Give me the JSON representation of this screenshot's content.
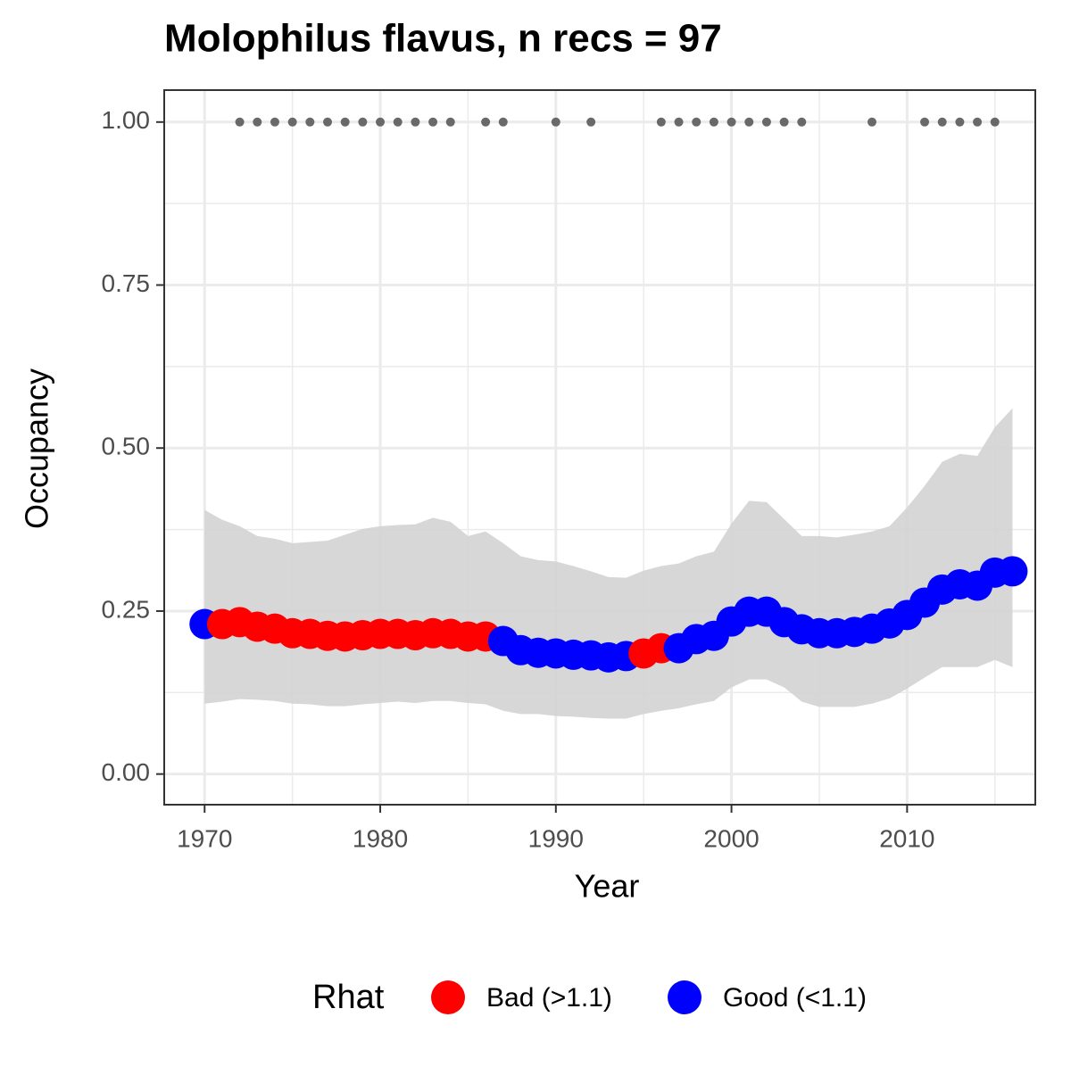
{
  "chart_data": {
    "type": "scatter",
    "title": "Molophilus flavus, n recs = 97",
    "x_label": "Year",
    "y_label": "Occupancy",
    "legend_title": "Rhat",
    "xlim": [
      1967.7,
      2017.3
    ],
    "ylim": [
      -0.047,
      1.049
    ],
    "xticks": [
      1970,
      1980,
      1990,
      2000,
      2010
    ],
    "yticks": [
      {
        "value": 0,
        "label": "0.00"
      },
      {
        "value": 0.25,
        "label": "0.25"
      },
      {
        "value": 0.5,
        "label": "0.50"
      },
      {
        "value": 0.75,
        "label": "0.75"
      },
      {
        "value": 1,
        "label": "1.00"
      }
    ],
    "x_minor_ticks": [
      1975,
      1985,
      1995,
      2005,
      2015
    ],
    "y_minor_ticks": [
      0.125,
      0.375,
      0.625,
      0.875
    ],
    "grid": true,
    "x": [
      1970,
      1971,
      1972,
      1973,
      1974,
      1975,
      1976,
      1977,
      1978,
      1979,
      1980,
      1981,
      1982,
      1983,
      1984,
      1985,
      1986,
      1987,
      1988,
      1989,
      1990,
      1991,
      1992,
      1993,
      1994,
      1995,
      1996,
      1997,
      1998,
      1999,
      2000,
      2001,
      2002,
      2003,
      2004,
      2005,
      2006,
      2007,
      2008,
      2009,
      2010,
      2011,
      2012,
      2013,
      2014,
      2015,
      2016
    ],
    "ribbon": {
      "color": "#d3d3d3",
      "upper": [
        0.405,
        0.39,
        0.38,
        0.365,
        0.361,
        0.354,
        0.356,
        0.358,
        0.367,
        0.376,
        0.38,
        0.382,
        0.383,
        0.393,
        0.387,
        0.365,
        0.372,
        0.354,
        0.334,
        0.328,
        0.326,
        0.319,
        0.311,
        0.302,
        0.301,
        0.312,
        0.319,
        0.323,
        0.334,
        0.341,
        0.384,
        0.419,
        0.417,
        0.391,
        0.365,
        0.365,
        0.363,
        0.367,
        0.372,
        0.38,
        0.409,
        0.442,
        0.479,
        0.491,
        0.488,
        0.532,
        0.561
      ],
      "lower": [
        0.108,
        0.111,
        0.115,
        0.114,
        0.112,
        0.108,
        0.107,
        0.104,
        0.104,
        0.107,
        0.109,
        0.111,
        0.109,
        0.112,
        0.112,
        0.109,
        0.107,
        0.097,
        0.092,
        0.092,
        0.089,
        0.088,
        0.086,
        0.085,
        0.085,
        0.092,
        0.097,
        0.101,
        0.107,
        0.112,
        0.133,
        0.145,
        0.145,
        0.133,
        0.111,
        0.103,
        0.103,
        0.103,
        0.108,
        0.116,
        0.131,
        0.148,
        0.164,
        0.164,
        0.164,
        0.175,
        0.164
      ]
    },
    "series": [
      {
        "name": "Bad (>1.1)",
        "color": "#ff0000",
        "values": [
          null,
          0.23,
          0.233,
          0.226,
          0.223,
          0.216,
          0.215,
          0.212,
          0.211,
          0.213,
          0.215,
          0.215,
          0.213,
          0.216,
          0.215,
          0.211,
          0.211,
          null,
          null,
          null,
          null,
          null,
          null,
          null,
          null,
          0.185,
          0.193,
          null,
          null,
          null,
          null,
          null,
          null,
          null,
          null,
          null,
          null,
          null,
          null,
          null,
          null,
          null,
          null,
          null,
          null,
          null,
          null
        ]
      },
      {
        "name": "Good (<1.1)",
        "color": "#0000ff",
        "values": [
          0.23,
          null,
          null,
          null,
          null,
          null,
          null,
          null,
          null,
          null,
          null,
          null,
          null,
          null,
          null,
          null,
          null,
          0.204,
          0.19,
          0.186,
          0.185,
          0.183,
          0.182,
          0.179,
          0.181,
          null,
          null,
          0.193,
          0.207,
          0.212,
          0.234,
          0.249,
          0.249,
          0.233,
          0.222,
          0.216,
          0.216,
          0.218,
          0.223,
          0.231,
          0.244,
          0.263,
          0.283,
          0.291,
          0.289,
          0.309,
          0.311
        ]
      }
    ],
    "records": {
      "color": "#696969",
      "x": [
        1972,
        1973,
        1974,
        1975,
        1976,
        1977,
        1978,
        1979,
        1980,
        1981,
        1982,
        1983,
        1984,
        1986,
        1987,
        1990,
        1992,
        1996,
        1997,
        1998,
        1999,
        2000,
        2001,
        2002,
        2003,
        2004,
        2008,
        2011,
        2012,
        2013,
        2014,
        2015
      ],
      "values": [
        1,
        1,
        1,
        1,
        1,
        1,
        1,
        1,
        1,
        1,
        1,
        1,
        1,
        1,
        1,
        1,
        1,
        1,
        1,
        1,
        1,
        1,
        1,
        1,
        1,
        1,
        1,
        1,
        1,
        1,
        1,
        1
      ]
    }
  }
}
